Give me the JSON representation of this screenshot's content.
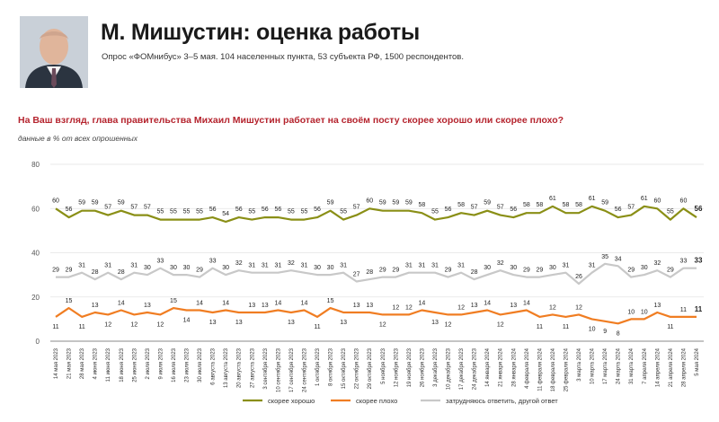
{
  "header": {
    "title": "М. Мишустин: оценка работы",
    "subtitle": "Опрос «ФОМнибус» 3–5 мая. 104 населенных пункта, 53 субъекта РФ, 1500 респондентов."
  },
  "question": "На Ваш взгляд, глава правительства Михаил Мишустин работает на своём посту скорее хорошо или скорее плохо?",
  "note": "данные в % от всех опрошенных",
  "colors": {
    "good": "#8a8f16",
    "bad": "#f07d22",
    "hard": "#c8c8c8",
    "grid": "#e3e3e3",
    "axis": "#888888"
  },
  "chart_data": {
    "type": "line",
    "ylim": [
      0,
      80
    ],
    "yticks": [
      0,
      20,
      40,
      60,
      80
    ],
    "grid": true,
    "legend_position": "bottom",
    "x": [
      "14 мая 2023",
      "21 мая 2023",
      "28 мая 2023",
      "4 июня 2023",
      "11 июня 2023",
      "18 июня 2023",
      "25 июня 2023",
      "2 июля 2023",
      "9 июля 2023",
      "16 июля 2023",
      "23 июля 2023",
      "30 июля 2023",
      "6 августа 2023",
      "13 августа 2023",
      "20 августа 2023",
      "27 августа 2023",
      "3 сентября 2023",
      "10 сентября 2023",
      "17 сентября 2023",
      "24 сентября 2023",
      "1 октября 2023",
      "8 октября 2023",
      "15 октября 2023",
      "22 октября 2023",
      "29 октября 2023",
      "5 ноября 2023",
      "12 ноября 2023",
      "19 ноября 2023",
      "26 ноября 2023",
      "3 декабря 2023",
      "10 декабря 2023",
      "17 декабря 2023",
      "24 декабря 2023",
      "14 января 2024",
      "21 января 2024",
      "28 января 2024",
      "4 февраля 2024",
      "11 февраля 2024",
      "18 февраля 2024",
      "25 февраля 2024",
      "3 марта 2024",
      "10 марта 2024",
      "17 марта 2024",
      "24 марта 2024",
      "31 марта 2024",
      "7 апреля 2024",
      "14 апреля 2024",
      "21 апреля 2024",
      "28 апреля 2024",
      "5 мая 2024"
    ],
    "series": [
      {
        "name": "скорее хорошо",
        "color": "#8a8f16",
        "values": [
          60,
          56,
          59,
          59,
          57,
          59,
          57,
          57,
          55,
          55,
          55,
          55,
          56,
          54,
          56,
          55,
          56,
          56,
          55,
          55,
          56,
          59,
          55,
          57,
          60,
          59,
          59,
          59,
          58,
          55,
          56,
          58,
          57,
          59,
          57,
          56,
          58,
          58,
          61,
          58,
          58,
          61,
          59,
          56,
          57,
          61,
          60,
          55,
          60,
          56
        ]
      },
      {
        "name": "скорее плохо",
        "color": "#f07d22",
        "values": [
          11,
          15,
          11,
          13,
          12,
          14,
          12,
          13,
          12,
          15,
          14,
          14,
          13,
          14,
          13,
          13,
          13,
          14,
          13,
          14,
          11,
          15,
          13,
          13,
          13,
          12,
          12,
          12,
          14,
          13,
          12,
          12,
          13,
          14,
          12,
          13,
          14,
          11,
          12,
          11,
          12,
          10,
          9,
          8,
          10,
          10,
          13,
          11,
          11,
          11
        ]
      },
      {
        "name": "затрудняюсь ответить, другой ответ",
        "color": "#c8c8c8",
        "values": [
          29,
          29,
          31,
          28,
          31,
          28,
          31,
          30,
          33,
          30,
          30,
          29,
          33,
          30,
          32,
          31,
          31,
          31,
          32,
          31,
          30,
          30,
          31,
          27,
          28,
          29,
          29,
          31,
          31,
          31,
          29,
          31,
          28,
          30,
          32,
          30,
          29,
          29,
          30,
          31,
          26,
          31,
          35,
          34,
          29,
          30,
          32,
          29,
          33,
          33
        ]
      }
    ],
    "bold_last_label": true
  }
}
